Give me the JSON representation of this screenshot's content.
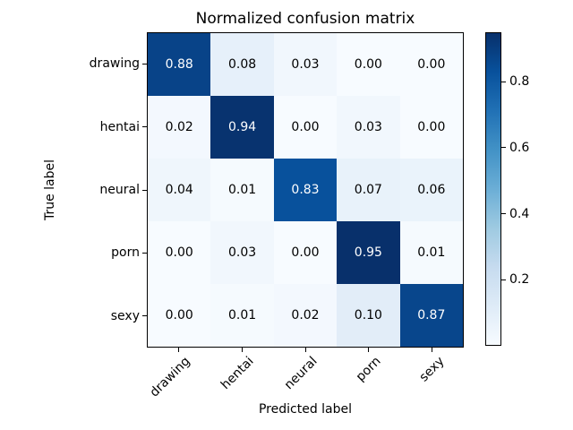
{
  "figure": {
    "title": "Normalized confusion matrix",
    "xlabel": "Predicted label",
    "ylabel": "True label"
  },
  "chart_data": {
    "type": "heatmap",
    "title": "Normalized confusion matrix",
    "xlabel": "Predicted label",
    "ylabel": "True label",
    "x_tick_labels": [
      "drawing",
      "hentai",
      "neural",
      "porn",
      "sexy"
    ],
    "y_tick_labels": [
      "drawing",
      "hentai",
      "neural",
      "porn",
      "sexy"
    ],
    "matrix": [
      [
        0.88,
        0.08,
        0.03,
        0.0,
        0.0
      ],
      [
        0.02,
        0.94,
        0.0,
        0.03,
        0.0
      ],
      [
        0.04,
        0.01,
        0.83,
        0.07,
        0.06
      ],
      [
        0.0,
        0.03,
        0.0,
        0.95,
        0.01
      ],
      [
        0.0,
        0.01,
        0.02,
        0.1,
        0.87
      ]
    ],
    "cell_labels": [
      [
        "0.88",
        "0.08",
        "0.03",
        "0.00",
        "0.00"
      ],
      [
        "0.02",
        "0.94",
        "0.00",
        "0.03",
        "0.00"
      ],
      [
        "0.04",
        "0.01",
        "0.83",
        "0.07",
        "0.06"
      ],
      [
        "0.00",
        "0.03",
        "0.00",
        "0.95",
        "0.01"
      ],
      [
        "0.00",
        "0.01",
        "0.02",
        "0.10",
        "0.87"
      ]
    ],
    "colormap": "Blues",
    "vmin": 0.0,
    "vmax": 0.95,
    "colorbar_tick_values": [
      0.2,
      0.4,
      0.6,
      0.8
    ],
    "colorbar_tick_labels": [
      "0.2",
      "0.4",
      "0.6",
      "0.8"
    ],
    "colorbar_position": "right",
    "grid": false,
    "x_tick_rotation_deg": 45
  },
  "colors": {
    "background": "#ffffff",
    "text": "#000000",
    "axis": "#000000",
    "cell_text_light": "#ffffff",
    "cell_text_dark": "#000000",
    "text_threshold": 0.475,
    "cell_colors": [
      [
        "#084388",
        "#e6f0fa",
        "#f1f7fd",
        "#f7fbff",
        "#f7fbff"
      ],
      [
        "#f3f8fe",
        "#08336f",
        "#f7fbff",
        "#f1f7fd",
        "#f7fbff"
      ],
      [
        "#eff6fc",
        "#f5fafe",
        "#08519c",
        "#e8f2fa",
        "#eaf3fb"
      ],
      [
        "#f7fbff",
        "#f1f7fd",
        "#f7fbff",
        "#08306b",
        "#f5fafe"
      ],
      [
        "#f7fbff",
        "#f5fafe",
        "#f3f8fe",
        "#e2edf8",
        "#08468c"
      ]
    ],
    "colorbar_gradient": [
      "#f7fbff",
      "#deebf7",
      "#c6dbef",
      "#9ecae1",
      "#6baed6",
      "#4292c6",
      "#2171b5",
      "#08519c",
      "#08306b"
    ]
  }
}
